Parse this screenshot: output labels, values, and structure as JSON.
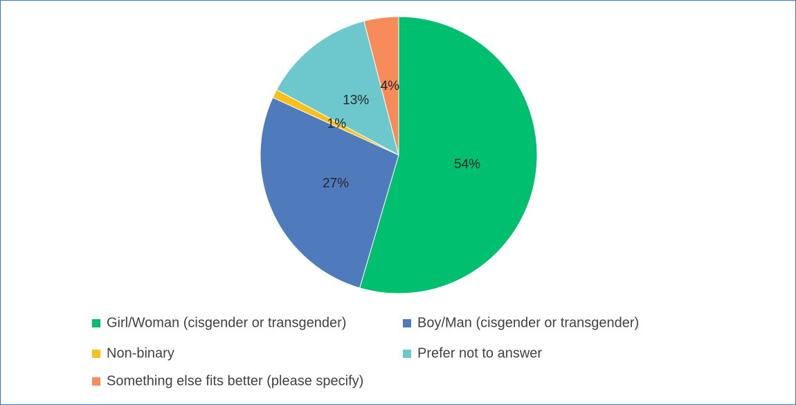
{
  "chart_data": {
    "type": "pie",
    "categories": [
      "Girl/Woman (cisgender or transgender)",
      "Boy/Man (cisgender or transgender)",
      "Non-binary",
      "Prefer not to answer",
      "Something else fits better (please specify)"
    ],
    "values": [
      54,
      27,
      1,
      13,
      4
    ],
    "value_labels": [
      "54%",
      "27%",
      "1%",
      "13%",
      "4%"
    ],
    "colors": [
      "#00bf6f",
      "#4f7bbd",
      "#f8c018",
      "#6cc8cc",
      "#f78c5a"
    ],
    "legend": "bottom"
  }
}
